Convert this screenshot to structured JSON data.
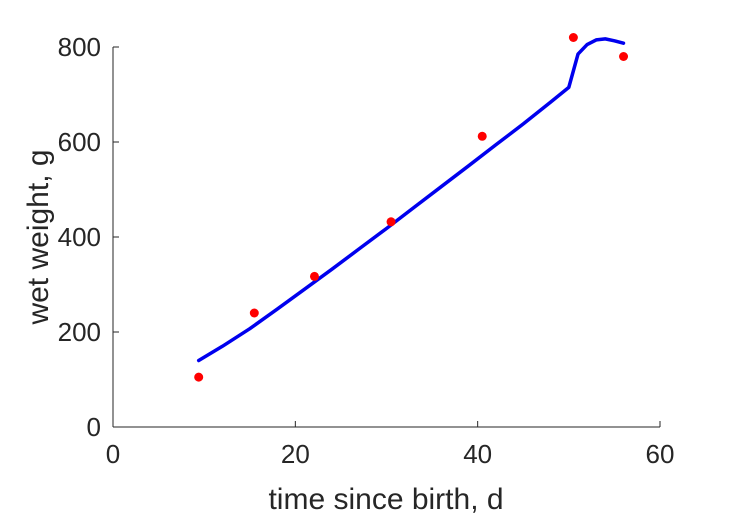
{
  "chart_data": {
    "type": "scatter",
    "xlabel": "time since birth, d",
    "ylabel": "wet weight, g",
    "xlim": [
      0,
      60
    ],
    "ylim": [
      0,
      800
    ],
    "xticks": [
      0,
      20,
      40,
      60
    ],
    "yticks": [
      0,
      200,
      400,
      600,
      800
    ],
    "grid": false,
    "legend": "none",
    "series": [
      {
        "kind": "points",
        "color": "#ff0000",
        "x": [
          9.4,
          15.5,
          22.1,
          30.5,
          40.5,
          50.5,
          56.0
        ],
        "y": [
          105,
          240,
          317,
          432,
          612,
          820,
          780
        ]
      },
      {
        "kind": "line",
        "color": "#0000ee",
        "x": [
          9.4,
          12,
          15,
          18,
          21,
          24,
          27,
          30,
          33,
          36,
          39,
          42,
          45,
          48,
          50,
          51,
          52,
          53,
          54,
          55,
          56
        ],
        "y": [
          140,
          170,
          207,
          248,
          290,
          332,
          375,
          418,
          462,
          506,
          550,
          594,
          638,
          684,
          715,
          785,
          805,
          815,
          817,
          813,
          808
        ]
      }
    ]
  }
}
